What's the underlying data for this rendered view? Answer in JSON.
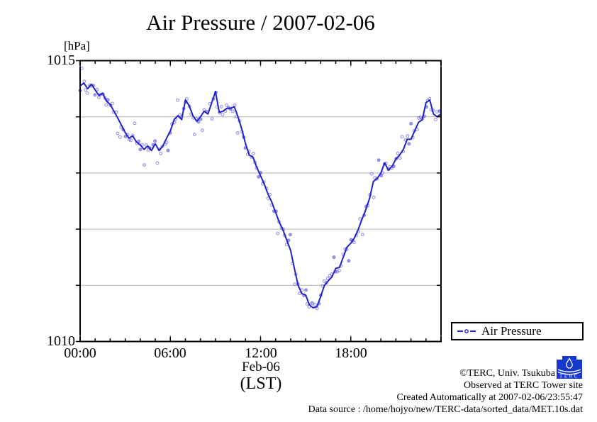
{
  "title": "Air Pressure / 2007-02-06",
  "axes": {
    "y": {
      "unit_label": "[hPa]",
      "max_label": "1015",
      "min_label": "1010",
      "min": 1010,
      "max": 1015,
      "gridlines": [
        1011,
        1012,
        1013,
        1014
      ]
    },
    "x": {
      "tick_labels": [
        "00:00",
        "06:00",
        "12:00",
        "18:00"
      ],
      "tick_hours": [
        0,
        6,
        12,
        18
      ],
      "minor_every_hours": 1,
      "major_every_hours": 6,
      "min_hour": 0,
      "max_hour": 24,
      "date_label": "Feb-06",
      "timezone_label": "(LST)"
    }
  },
  "legend": {
    "label": "Air Pressure"
  },
  "footer": {
    "line1": "©TERC, Univ. Tsukuba",
    "line2": "Observed at TERC Tower site",
    "line3": "Created Automatically at 2007-02-06/23:55:47",
    "line4": "Data source : /home/hojyo/new/TERC-data/sorted_data/MET.10s.dat",
    "logo_text": "TERC"
  },
  "colors": {
    "line": "#2222cc",
    "marker": "#4a4ada",
    "grid": "#b3b3b3",
    "major_tick_stub": "#999999",
    "axis": "#000000",
    "logo_blue": "#1638cc"
  },
  "chart_data": {
    "type": "line",
    "title": "Air Pressure / 2007-02-06",
    "xlabel": "Feb-06 (LST)",
    "ylabel": "[hPa]",
    "x_unit": "hours LST on 2007-02-06",
    "xlim": [
      0,
      24
    ],
    "ylim": [
      1010,
      1015
    ],
    "grid": "horizontal only at 1011-1014",
    "legend_position": "outside lower right",
    "marker_jitter_hpa": 0.11,
    "series": [
      {
        "name": "Air Pressure",
        "points": [
          [
            0.0,
            1014.55
          ],
          [
            0.25,
            1014.6
          ],
          [
            0.5,
            1014.5
          ],
          [
            0.75,
            1014.58
          ],
          [
            1.0,
            1014.48
          ],
          [
            1.25,
            1014.38
          ],
          [
            1.5,
            1014.42
          ],
          [
            1.75,
            1014.28
          ],
          [
            2.0,
            1014.22
          ],
          [
            2.25,
            1014.1
          ],
          [
            2.5,
            1013.98
          ],
          [
            2.75,
            1013.85
          ],
          [
            3.0,
            1013.72
          ],
          [
            3.25,
            1013.62
          ],
          [
            3.5,
            1013.66
          ],
          [
            3.75,
            1013.55
          ],
          [
            4.0,
            1013.5
          ],
          [
            4.25,
            1013.42
          ],
          [
            4.5,
            1013.48
          ],
          [
            4.75,
            1013.4
          ],
          [
            5.0,
            1013.52
          ],
          [
            5.25,
            1013.4
          ],
          [
            5.5,
            1013.48
          ],
          [
            5.75,
            1013.62
          ],
          [
            6.0,
            1013.75
          ],
          [
            6.25,
            1013.95
          ],
          [
            6.5,
            1014.02
          ],
          [
            6.75,
            1013.95
          ],
          [
            7.0,
            1014.3
          ],
          [
            7.25,
            1014.2
          ],
          [
            7.5,
            1014.02
          ],
          [
            7.75,
            1013.92
          ],
          [
            8.0,
            1014.0
          ],
          [
            8.25,
            1014.1
          ],
          [
            8.5,
            1014.05
          ],
          [
            8.75,
            1014.25
          ],
          [
            9.0,
            1014.45
          ],
          [
            9.25,
            1014.08
          ],
          [
            9.5,
            1014.1
          ],
          [
            9.75,
            1014.15
          ],
          [
            10.0,
            1014.15
          ],
          [
            10.25,
            1014.18
          ],
          [
            10.5,
            1014.0
          ],
          [
            10.75,
            1013.78
          ],
          [
            11.0,
            1013.52
          ],
          [
            11.25,
            1013.32
          ],
          [
            11.5,
            1013.28
          ],
          [
            11.75,
            1013.1
          ],
          [
            12.0,
            1012.95
          ],
          [
            12.25,
            1012.8
          ],
          [
            12.5,
            1012.62
          ],
          [
            12.75,
            1012.48
          ],
          [
            13.0,
            1012.3
          ],
          [
            13.25,
            1012.12
          ],
          [
            13.5,
            1011.98
          ],
          [
            13.75,
            1011.8
          ],
          [
            14.0,
            1011.62
          ],
          [
            14.25,
            1011.3
          ],
          [
            14.5,
            1011.0
          ],
          [
            14.75,
            1010.85
          ],
          [
            15.0,
            1010.83
          ],
          [
            15.25,
            1010.65
          ],
          [
            15.5,
            1010.6
          ],
          [
            15.75,
            1010.62
          ],
          [
            16.0,
            1010.8
          ],
          [
            16.25,
            1011.0
          ],
          [
            16.5,
            1011.08
          ],
          [
            16.75,
            1011.15
          ],
          [
            17.0,
            1011.3
          ],
          [
            17.25,
            1011.32
          ],
          [
            17.5,
            1011.5
          ],
          [
            17.75,
            1011.68
          ],
          [
            18.0,
            1011.75
          ],
          [
            18.25,
            1011.85
          ],
          [
            18.5,
            1012.0
          ],
          [
            18.75,
            1012.18
          ],
          [
            19.0,
            1012.35
          ],
          [
            19.25,
            1012.55
          ],
          [
            19.5,
            1012.85
          ],
          [
            19.75,
            1012.9
          ],
          [
            20.0,
            1013.0
          ],
          [
            20.25,
            1013.18
          ],
          [
            20.5,
            1013.05
          ],
          [
            20.75,
            1013.12
          ],
          [
            21.0,
            1013.25
          ],
          [
            21.25,
            1013.32
          ],
          [
            21.5,
            1013.42
          ],
          [
            21.75,
            1013.6
          ],
          [
            22.0,
            1013.6
          ],
          [
            22.25,
            1013.75
          ],
          [
            22.5,
            1013.9
          ],
          [
            22.75,
            1013.95
          ],
          [
            23.0,
            1014.25
          ],
          [
            23.25,
            1014.3
          ],
          [
            23.5,
            1014.05
          ],
          [
            23.75,
            1014.0
          ],
          [
            24.0,
            1014.05
          ]
        ]
      }
    ]
  }
}
